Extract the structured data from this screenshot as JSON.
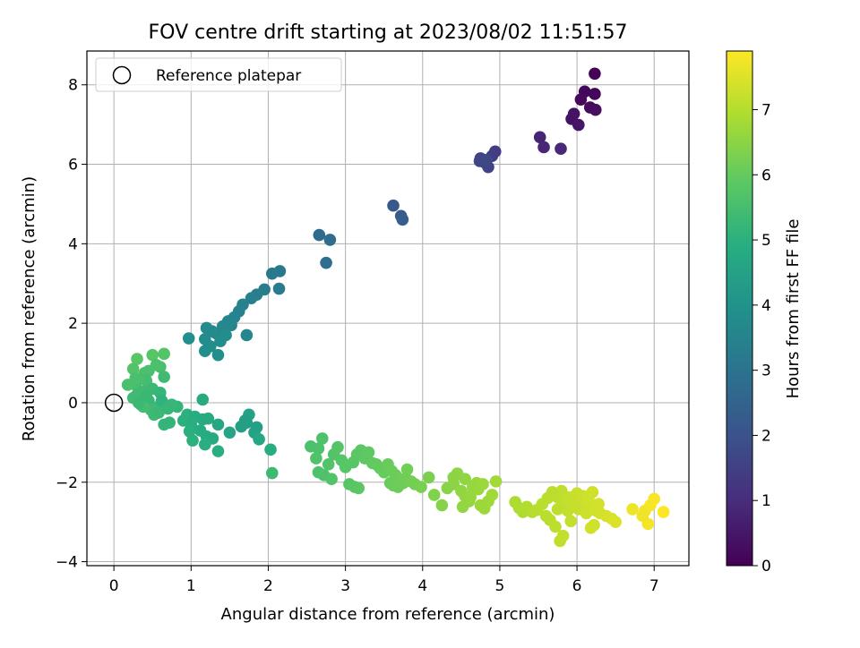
{
  "chart_data": {
    "type": "scatter",
    "title": "FOV centre drift starting at 2023/08/02 11:51:57",
    "xlabel": "Angular distance from reference (arcmin)",
    "ylabel": "Rotation from reference (arcmin)",
    "xlim": [
      -0.35,
      7.45
    ],
    "ylim": [
      -4.1,
      8.85
    ],
    "xticks": [
      0,
      1,
      2,
      3,
      4,
      5,
      6,
      7
    ],
    "yticks": [
      -4,
      -2,
      0,
      2,
      4,
      6,
      8
    ],
    "xtick_labels": [
      "0",
      "1",
      "2",
      "3",
      "4",
      "5",
      "6",
      "7"
    ],
    "ytick_labels": [
      "−4",
      "−2",
      "0",
      "2",
      "4",
      "6",
      "8"
    ],
    "grid": true,
    "legend": {
      "position": "top-left",
      "entries": [
        {
          "label": "Reference platepar",
          "marker": "open-circle"
        }
      ]
    },
    "reference_point": {
      "x": 0,
      "y": 0
    },
    "colorbar": {
      "label": "Hours from first FF file",
      "colormap": "viridis",
      "range": [
        0,
        7.9
      ],
      "ticks": [
        0,
        1,
        2,
        3,
        4,
        5,
        6,
        7
      ],
      "tick_labels": [
        "0",
        "1",
        "2",
        "3",
        "4",
        "5",
        "6",
        "7"
      ]
    },
    "series": [
      {
        "x": [
          6.23,
          6.23,
          6.1,
          6.05,
          6.17,
          6.24,
          5.93,
          5.96,
          6.02,
          5.52,
          5.57,
          5.79,
          4.94,
          4.9,
          4.75,
          4.8,
          4.85,
          4.74,
          4.83,
          3.62,
          3.72,
          3.74,
          2.66,
          2.8,
          2.75,
          2.15,
          2.05,
          2.14,
          1.95,
          1.85,
          1.78,
          1.67,
          1.62,
          1.56,
          1.48,
          1.52,
          1.72,
          1.41,
          1.32,
          1.35,
          1.27,
          1.2,
          1.18,
          1.38,
          1.45,
          1.25,
          1.18,
          1.35,
          0.97
        ],
        "y": [
          8.28,
          7.77,
          7.83,
          7.63,
          7.43,
          7.37,
          7.14,
          7.27,
          6.99,
          6.68,
          6.43,
          6.39,
          6.32,
          6.21,
          6.15,
          6.05,
          5.93,
          6.08,
          6.11,
          4.96,
          4.7,
          4.61,
          4.22,
          4.1,
          3.52,
          3.31,
          3.25,
          2.87,
          2.85,
          2.72,
          2.63,
          2.47,
          2.3,
          2.15,
          2.05,
          1.95,
          1.7,
          1.92,
          1.75,
          1.72,
          1.8,
          1.88,
          1.6,
          1.55,
          1.7,
          1.42,
          1.3,
          1.2,
          1.62
        ],
        "t": [
          0.05,
          0.1,
          0.15,
          0.2,
          0.25,
          0.3,
          0.35,
          0.4,
          0.45,
          0.8,
          0.85,
          0.9,
          1.4,
          1.45,
          1.5,
          1.55,
          1.6,
          1.65,
          1.7,
          2.2,
          2.25,
          2.3,
          2.75,
          2.8,
          2.85,
          3.15,
          3.2,
          3.25,
          3.3,
          3.35,
          3.4,
          3.45,
          3.5,
          3.55,
          3.58,
          3.6,
          3.62,
          3.65,
          3.68,
          3.7,
          3.72,
          3.75,
          3.78,
          3.8,
          3.82,
          3.85,
          3.88,
          3.9,
          3.93
        ]
      },
      {
        "x": [
          0.65,
          0.6,
          0.5,
          0.45,
          0.3,
          0.25,
          0.4,
          0.55,
          0.65,
          0.42,
          0.33,
          0.28,
          0.18,
          0.5,
          0.38,
          0.3,
          0.6,
          0.25,
          0.45,
          0.35,
          0.55,
          0.48,
          0.38,
          0.32,
          0.62,
          0.42,
          0.28,
          0.52,
          0.58,
          0.7,
          0.82,
          0.75,
          0.95,
          0.9,
          1.05,
          1.15,
          1.0,
          0.65,
          0.72,
          1.22,
          1.35,
          1.12,
          0.98,
          1.2,
          1.28,
          1.18,
          1.02,
          1.5,
          1.65,
          1.72,
          1.75,
          1.7,
          1.85,
          1.82,
          1.88,
          1.35,
          1.15,
          2.03,
          2.05
        ],
        "y": [
          1.23,
          0.9,
          1.2,
          0.8,
          1.1,
          0.85,
          0.75,
          0.95,
          0.65,
          0.55,
          0.6,
          0.45,
          0.45,
          0.35,
          0.28,
          0.2,
          0.25,
          0.12,
          0.05,
          -0.05,
          -0.12,
          -0.18,
          -0.1,
          0.0,
          0.05,
          0.18,
          0.62,
          -0.3,
          -0.25,
          -0.15,
          -0.1,
          -0.05,
          -0.3,
          -0.45,
          -0.35,
          -0.42,
          -0.55,
          -0.55,
          -0.5,
          -0.4,
          -0.55,
          -0.7,
          -0.72,
          -0.85,
          -0.9,
          -1.05,
          -0.95,
          -0.75,
          -0.6,
          -0.5,
          -0.3,
          -0.45,
          -0.62,
          -0.75,
          -0.92,
          -1.22,
          0.08,
          -1.18,
          -1.77
        ]
      },
      {
        "x": [
          2.55,
          2.65,
          2.7,
          2.62,
          2.78,
          2.85,
          2.9,
          2.95,
          3.0,
          3.1,
          3.15,
          3.2,
          3.25,
          3.3,
          3.35,
          2.65,
          2.72,
          2.82,
          3.05,
          3.12,
          3.17,
          3.4,
          3.45,
          3.5,
          3.55,
          3.6,
          3.65,
          3.7,
          3.75,
          3.8,
          3.58,
          3.62,
          3.68,
          3.72,
          3.78,
          3.85,
          3.9,
          3.98,
          4.08,
          4.15,
          4.25,
          4.32,
          4.4,
          4.45,
          4.5,
          4.55,
          4.6,
          4.65,
          4.7,
          4.75,
          4.8,
          4.85,
          4.9,
          4.95,
          4.52,
          4.62,
          4.72,
          4.78,
          4.4,
          4.55
        ],
        "y": [
          -1.1,
          -1.15,
          -0.9,
          -1.4,
          -1.55,
          -1.3,
          -1.12,
          -1.45,
          -1.62,
          -1.5,
          -1.3,
          -1.2,
          -1.4,
          -1.25,
          -1.52,
          -1.75,
          -1.82,
          -1.92,
          -2.05,
          -2.12,
          -2.15,
          -1.55,
          -1.65,
          -1.75,
          -1.55,
          -1.72,
          -1.82,
          -1.92,
          -2.02,
          -1.68,
          -2.02,
          -2.08,
          -2.12,
          -1.95,
          -1.9,
          -1.98,
          -2.05,
          -2.12,
          -1.88,
          -2.32,
          -2.58,
          -2.15,
          -2.05,
          -1.78,
          -2.22,
          -2.35,
          -2.48,
          -2.12,
          -2.02,
          -2.58,
          -2.66,
          -2.48,
          -2.32,
          -1.98,
          -2.62,
          -2.38,
          -2.18,
          -2.05,
          -1.88,
          -1.92
        ],
        "t": [
          5.6,
          5.62,
          5.65,
          5.67,
          5.7,
          5.72,
          5.75,
          5.77,
          5.8,
          5.82,
          5.85,
          5.87,
          5.9,
          5.92,
          5.95,
          5.62,
          5.65,
          5.7,
          5.78,
          5.82,
          5.85,
          5.98,
          6.0,
          6.02,
          6.05,
          6.07,
          6.1,
          6.12,
          6.15,
          6.18,
          6.05,
          6.08,
          6.1,
          6.12,
          6.15,
          6.18,
          6.2,
          6.25,
          6.3,
          6.35,
          6.42,
          6.45,
          6.5,
          6.52,
          6.55,
          6.58,
          6.6,
          6.62,
          6.65,
          6.68,
          6.7,
          6.72,
          6.75,
          6.78,
          6.58,
          6.62,
          6.65,
          6.68,
          6.5,
          6.55
        ]
      },
      {
        "x": [
          5.2,
          5.25,
          5.3,
          5.35,
          5.42,
          5.48,
          5.55,
          5.62,
          5.68,
          5.75,
          5.8,
          5.85,
          5.9,
          5.95,
          6.0,
          6.05,
          6.1,
          6.15,
          6.2,
          6.25,
          6.3,
          6.38,
          6.45,
          6.5,
          5.6,
          5.65,
          5.72,
          5.78,
          5.82,
          5.92,
          6.02,
          6.12,
          6.18,
          6.22,
          6.28,
          5.68,
          5.75,
          5.88,
          5.98,
          6.08,
          6.15,
          6.25,
          6.72,
          6.88,
          6.92,
          6.95,
          7.0,
          7.12,
          6.85
        ],
        "y": [
          -2.5,
          -2.65,
          -2.75,
          -2.62,
          -2.75,
          -2.7,
          -2.55,
          -2.4,
          -2.25,
          -2.38,
          -2.22,
          -2.52,
          -2.38,
          -2.42,
          -2.28,
          -2.52,
          -2.62,
          -2.48,
          -2.25,
          -2.65,
          -2.78,
          -2.85,
          -2.92,
          -3.0,
          -2.85,
          -2.95,
          -3.12,
          -3.48,
          -3.35,
          -2.98,
          -2.68,
          -2.78,
          -3.15,
          -3.08,
          -2.55,
          -2.28,
          -2.68,
          -2.72,
          -2.58,
          -2.35,
          -2.38,
          -2.72,
          -2.68,
          -2.72,
          -3.05,
          -2.58,
          -2.42,
          -2.75,
          -2.85
        ],
        "t": [
          6.9,
          6.92,
          6.95,
          6.97,
          7.0,
          7.02,
          7.05,
          7.07,
          7.1,
          7.12,
          7.15,
          7.17,
          7.2,
          7.22,
          7.25,
          7.27,
          7.3,
          7.32,
          7.35,
          7.37,
          7.4,
          7.42,
          7.45,
          7.48,
          7.05,
          7.08,
          7.12,
          7.15,
          7.17,
          7.2,
          7.25,
          7.3,
          7.33,
          7.35,
          7.38,
          7.08,
          7.12,
          7.18,
          7.22,
          7.28,
          7.32,
          7.37,
          7.7,
          7.75,
          7.78,
          7.8,
          7.83,
          7.88,
          7.72
        ]
      }
    ]
  }
}
